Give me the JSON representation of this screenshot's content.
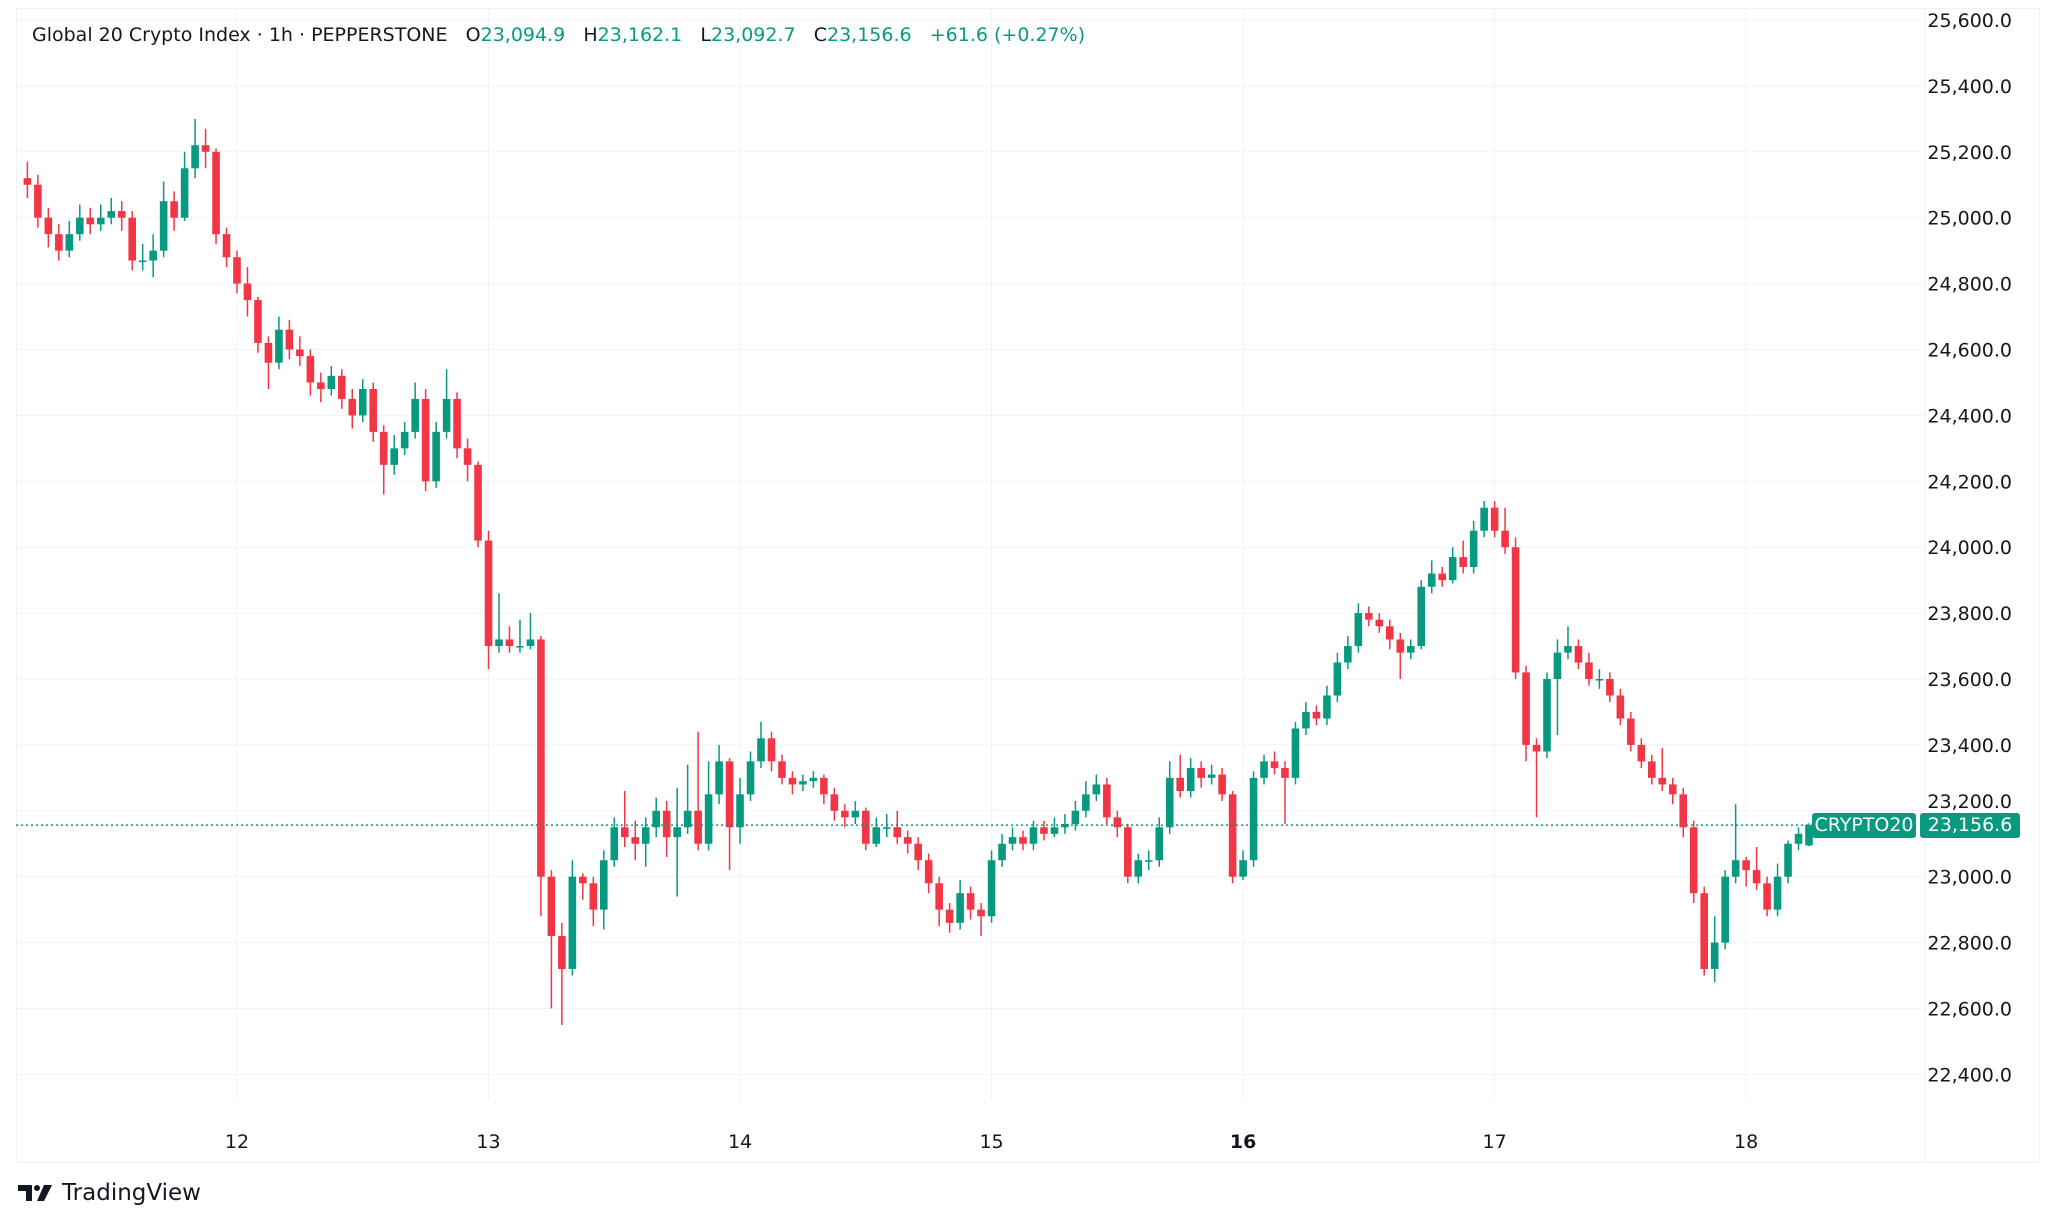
{
  "legend": {
    "symbol": "Global 20 Crypto Index",
    "interval": "1h",
    "exchange": "PEPPERSTONE",
    "open_label": "O",
    "open": "23,094.9",
    "high_label": "H",
    "high": "23,162.1",
    "low_label": "L",
    "low": "23,092.7",
    "close_label": "C",
    "close": "23,156.6",
    "change": "+61.6 (+0.27%)"
  },
  "price_tag": {
    "ticker": "CRYPTO20",
    "price": "23,156.6"
  },
  "footer": {
    "brand": "TradingView"
  },
  "colors": {
    "up": "#089981",
    "down": "#F23645",
    "grid": "#F0F3FA",
    "text": "#131722"
  },
  "chart_data": {
    "type": "candlestick",
    "interval": "1h",
    "ylim": [
      22300,
      25650
    ],
    "y_ticks": [
      22400,
      22600,
      22800,
      23000,
      23200,
      23400,
      23600,
      23800,
      24000,
      24200,
      24400,
      24600,
      24800,
      25000,
      25200,
      25400,
      25600
    ],
    "y_tick_labels": [
      "22,400.0",
      "22,600.0",
      "22,800.0",
      "23,000.0",
      "23,200.0",
      "23,400.0",
      "23,600.0",
      "23,800.0",
      "24,000.0",
      "24,200.0",
      "24,400.0",
      "24,600.0",
      "24,800.0",
      "25,000.0",
      "25,200.0",
      "25,400.0",
      "25,600.0"
    ],
    "x_tick_labels": [
      "12",
      "13",
      "14",
      "15",
      "16",
      "17",
      "18"
    ],
    "x_tick_bold": "16",
    "grid": true,
    "last_price": 23156.6,
    "ohlc": [
      [
        25120,
        25170,
        25060,
        25100
      ],
      [
        25100,
        25130,
        24970,
        25000
      ],
      [
        25000,
        25030,
        24910,
        24950
      ],
      [
        24950,
        24980,
        24870,
        24900
      ],
      [
        24900,
        24990,
        24880,
        24950
      ],
      [
        24950,
        25040,
        24930,
        25000
      ],
      [
        25000,
        25030,
        24950,
        24980
      ],
      [
        24980,
        25040,
        24960,
        25000
      ],
      [
        25000,
        25060,
        24980,
        25020
      ],
      [
        25020,
        25050,
        24960,
        25000
      ],
      [
        25000,
        25020,
        24840,
        24870
      ],
      [
        24870,
        24920,
        24840,
        24870
      ],
      [
        24870,
        24950,
        24820,
        24900
      ],
      [
        24900,
        25110,
        24880,
        25050
      ],
      [
        25050,
        25080,
        24960,
        25000
      ],
      [
        25000,
        25200,
        24990,
        25150
      ],
      [
        25150,
        25300,
        25120,
        25220
      ],
      [
        25220,
        25270,
        25150,
        25200
      ],
      [
        25200,
        25210,
        24920,
        24950
      ],
      [
        24950,
        24970,
        24850,
        24880
      ],
      [
        24880,
        24900,
        24770,
        24800
      ],
      [
        24800,
        24850,
        24700,
        24750
      ],
      [
        24750,
        24760,
        24590,
        24620
      ],
      [
        24620,
        24640,
        24480,
        24560
      ],
      [
        24560,
        24700,
        24540,
        24660
      ],
      [
        24660,
        24690,
        24570,
        24600
      ],
      [
        24600,
        24640,
        24550,
        24580
      ],
      [
        24580,
        24600,
        24460,
        24500
      ],
      [
        24500,
        24530,
        24440,
        24480
      ],
      [
        24480,
        24550,
        24460,
        24520
      ],
      [
        24520,
        24540,
        24420,
        24450
      ],
      [
        24450,
        24480,
        24360,
        24400
      ],
      [
        24400,
        24510,
        24380,
        24480
      ],
      [
        24480,
        24500,
        24320,
        24350
      ],
      [
        24350,
        24370,
        24160,
        24250
      ],
      [
        24250,
        24340,
        24220,
        24300
      ],
      [
        24300,
        24380,
        24280,
        24350
      ],
      [
        24350,
        24500,
        24330,
        24450
      ],
      [
        24450,
        24480,
        24170,
        24200
      ],
      [
        24200,
        24380,
        24180,
        24350
      ],
      [
        24350,
        24540,
        24330,
        24450
      ],
      [
        24450,
        24470,
        24270,
        24300
      ],
      [
        24300,
        24330,
        24200,
        24250
      ],
      [
        24250,
        24260,
        24000,
        24020
      ],
      [
        24020,
        24050,
        23630,
        23700
      ],
      [
        23700,
        23860,
        23680,
        23720
      ],
      [
        23720,
        23760,
        23680,
        23700
      ],
      [
        23700,
        23780,
        23680,
        23700
      ],
      [
        23700,
        23800,
        23690,
        23720
      ],
      [
        23720,
        23730,
        22880,
        23000
      ],
      [
        23000,
        23020,
        22600,
        22820
      ],
      [
        22820,
        22860,
        22550,
        22720
      ],
      [
        22720,
        23050,
        22700,
        23000
      ],
      [
        23000,
        23010,
        22930,
        22980
      ],
      [
        22980,
        23000,
        22850,
        22900
      ],
      [
        22900,
        23080,
        22840,
        23050
      ],
      [
        23050,
        23180,
        23030,
        23150
      ],
      [
        23150,
        23260,
        23090,
        23120
      ],
      [
        23120,
        23170,
        23050,
        23100
      ],
      [
        23100,
        23180,
        23030,
        23150
      ],
      [
        23150,
        23240,
        23120,
        23200
      ],
      [
        23200,
        23230,
        23060,
        23120
      ],
      [
        23120,
        23270,
        22940,
        23150
      ],
      [
        23150,
        23340,
        23130,
        23200
      ],
      [
        23200,
        23440,
        23080,
        23100
      ],
      [
        23100,
        23350,
        23080,
        23250
      ],
      [
        23250,
        23400,
        23220,
        23350
      ],
      [
        23350,
        23360,
        23020,
        23150
      ],
      [
        23150,
        23300,
        23100,
        23250
      ],
      [
        23250,
        23380,
        23230,
        23350
      ],
      [
        23350,
        23470,
        23330,
        23420
      ],
      [
        23420,
        23440,
        23320,
        23350
      ],
      [
        23350,
        23370,
        23280,
        23300
      ],
      [
        23300,
        23320,
        23250,
        23280
      ],
      [
        23280,
        23310,
        23260,
        23290
      ],
      [
        23290,
        23320,
        23270,
        23300
      ],
      [
        23300,
        23310,
        23220,
        23250
      ],
      [
        23250,
        23270,
        23170,
        23200
      ],
      [
        23200,
        23220,
        23150,
        23180
      ],
      [
        23180,
        23230,
        23160,
        23200
      ],
      [
        23200,
        23210,
        23080,
        23100
      ],
      [
        23100,
        23180,
        23090,
        23150
      ],
      [
        23150,
        23190,
        23120,
        23150
      ],
      [
        23150,
        23200,
        23100,
        23120
      ],
      [
        23120,
        23140,
        23070,
        23100
      ],
      [
        23100,
        23120,
        23020,
        23050
      ],
      [
        23050,
        23070,
        22950,
        22980
      ],
      [
        22980,
        23000,
        22850,
        22900
      ],
      [
        22900,
        22920,
        22830,
        22860
      ],
      [
        22860,
        22990,
        22840,
        22950
      ],
      [
        22950,
        22970,
        22870,
        22900
      ],
      [
        22900,
        22920,
        22820,
        22880
      ],
      [
        22880,
        23080,
        22860,
        23050
      ],
      [
        23050,
        23130,
        23030,
        23100
      ],
      [
        23100,
        23150,
        23080,
        23120
      ],
      [
        23120,
        23140,
        23080,
        23100
      ],
      [
        23100,
        23170,
        23080,
        23150
      ],
      [
        23150,
        23170,
        23110,
        23130
      ],
      [
        23130,
        23180,
        23120,
        23150
      ],
      [
        23150,
        23190,
        23130,
        23160
      ],
      [
        23160,
        23230,
        23140,
        23200
      ],
      [
        23200,
        23290,
        23180,
        23250
      ],
      [
        23250,
        23310,
        23230,
        23280
      ],
      [
        23280,
        23300,
        23160,
        23180
      ],
      [
        23180,
        23200,
        23120,
        23150
      ],
      [
        23150,
        23160,
        22980,
        23000
      ],
      [
        23000,
        23070,
        22980,
        23050
      ],
      [
        23050,
        23080,
        23020,
        23050
      ],
      [
        23050,
        23180,
        23030,
        23150
      ],
      [
        23150,
        23350,
        23130,
        23300
      ],
      [
        23300,
        23370,
        23240,
        23260
      ],
      [
        23260,
        23360,
        23240,
        23330
      ],
      [
        23330,
        23350,
        23270,
        23300
      ],
      [
        23300,
        23340,
        23280,
        23310
      ],
      [
        23310,
        23330,
        23230,
        23250
      ],
      [
        23250,
        23260,
        22980,
        23000
      ],
      [
        23000,
        23080,
        22990,
        23050
      ],
      [
        23050,
        23320,
        23030,
        23300
      ],
      [
        23300,
        23370,
        23280,
        23350
      ],
      [
        23350,
        23380,
        23310,
        23330
      ],
      [
        23330,
        23350,
        23160,
        23300
      ],
      [
        23300,
        23470,
        23280,
        23450
      ],
      [
        23450,
        23530,
        23430,
        23500
      ],
      [
        23500,
        23520,
        23460,
        23480
      ],
      [
        23480,
        23580,
        23460,
        23550
      ],
      [
        23550,
        23680,
        23530,
        23650
      ],
      [
        23650,
        23730,
        23630,
        23700
      ],
      [
        23700,
        23830,
        23680,
        23800
      ],
      [
        23800,
        23820,
        23760,
        23780
      ],
      [
        23780,
        23800,
        23740,
        23760
      ],
      [
        23760,
        23780,
        23690,
        23720
      ],
      [
        23720,
        23740,
        23600,
        23680
      ],
      [
        23680,
        23720,
        23660,
        23700
      ],
      [
        23700,
        23900,
        23690,
        23880
      ],
      [
        23880,
        23960,
        23860,
        23920
      ],
      [
        23920,
        23940,
        23880,
        23900
      ],
      [
        23900,
        24000,
        23890,
        23970
      ],
      [
        23970,
        24020,
        23920,
        23940
      ],
      [
        23940,
        24080,
        23920,
        24050
      ],
      [
        24050,
        24140,
        24030,
        24120
      ],
      [
        24120,
        24140,
        24030,
        24050
      ],
      [
        24050,
        24120,
        23980,
        24000
      ],
      [
        24000,
        24030,
        23600,
        23620
      ],
      [
        23620,
        23640,
        23350,
        23400
      ],
      [
        23400,
        23420,
        23180,
        23380
      ],
      [
        23380,
        23620,
        23360,
        23600
      ],
      [
        23600,
        23720,
        23430,
        23680
      ],
      [
        23680,
        23760,
        23660,
        23700
      ],
      [
        23700,
        23720,
        23630,
        23650
      ],
      [
        23650,
        23680,
        23580,
        23600
      ],
      [
        23600,
        23630,
        23570,
        23600
      ],
      [
        23600,
        23620,
        23530,
        23550
      ],
      [
        23550,
        23570,
        23460,
        23480
      ],
      [
        23480,
        23500,
        23380,
        23400
      ],
      [
        23400,
        23420,
        23330,
        23350
      ],
      [
        23350,
        23370,
        23280,
        23300
      ],
      [
        23300,
        23390,
        23260,
        23280
      ],
      [
        23280,
        23300,
        23220,
        23250
      ],
      [
        23250,
        23270,
        23120,
        23150
      ],
      [
        23150,
        23170,
        22920,
        22950
      ],
      [
        22950,
        22970,
        22700,
        22720
      ],
      [
        22720,
        22880,
        22680,
        22800
      ],
      [
        22800,
        23020,
        22780,
        23000
      ],
      [
        23000,
        23220,
        22980,
        23050
      ],
      [
        23050,
        23060,
        22970,
        23020
      ],
      [
        23020,
        23090,
        22960,
        22980
      ],
      [
        22980,
        23000,
        22880,
        22900
      ],
      [
        22900,
        23040,
        22880,
        23000
      ],
      [
        23000,
        23110,
        22980,
        23100
      ],
      [
        23100,
        23150,
        23080,
        23130
      ],
      [
        23094.9,
        23162.1,
        23092.7,
        23156.6
      ]
    ]
  }
}
